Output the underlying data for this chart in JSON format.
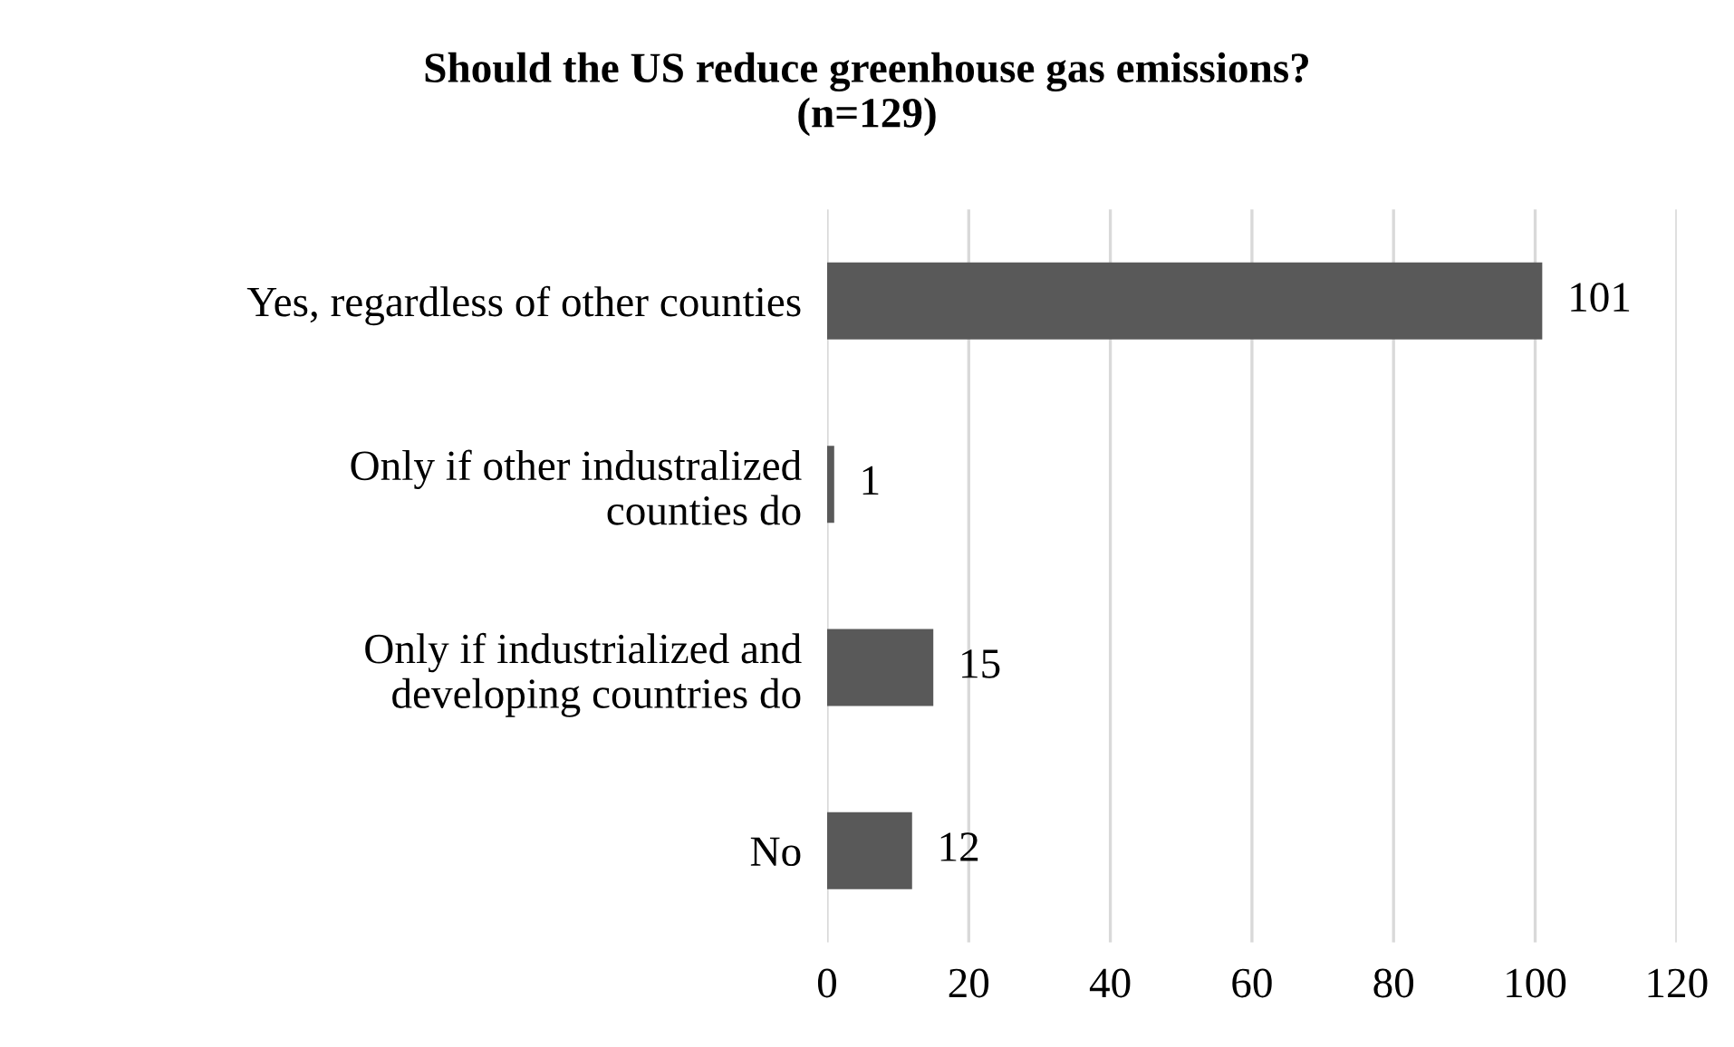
{
  "chart_data": {
    "type": "bar",
    "orientation": "horizontal",
    "title": "Should the US reduce greenhouse gas emissions?\n(n=129)",
    "categories": [
      "Yes, regardless of other counties",
      "Only if other industralized\ncounties do",
      "Only if industrialized and\ndeveloping countries do",
      "No"
    ],
    "values": [
      101,
      1,
      15,
      12
    ],
    "color": "#595959",
    "data_labels": true,
    "xlim": [
      0,
      120
    ],
    "xticks": [
      0,
      20,
      40,
      60,
      80,
      100,
      120
    ],
    "grid": "x",
    "legend": false
  }
}
